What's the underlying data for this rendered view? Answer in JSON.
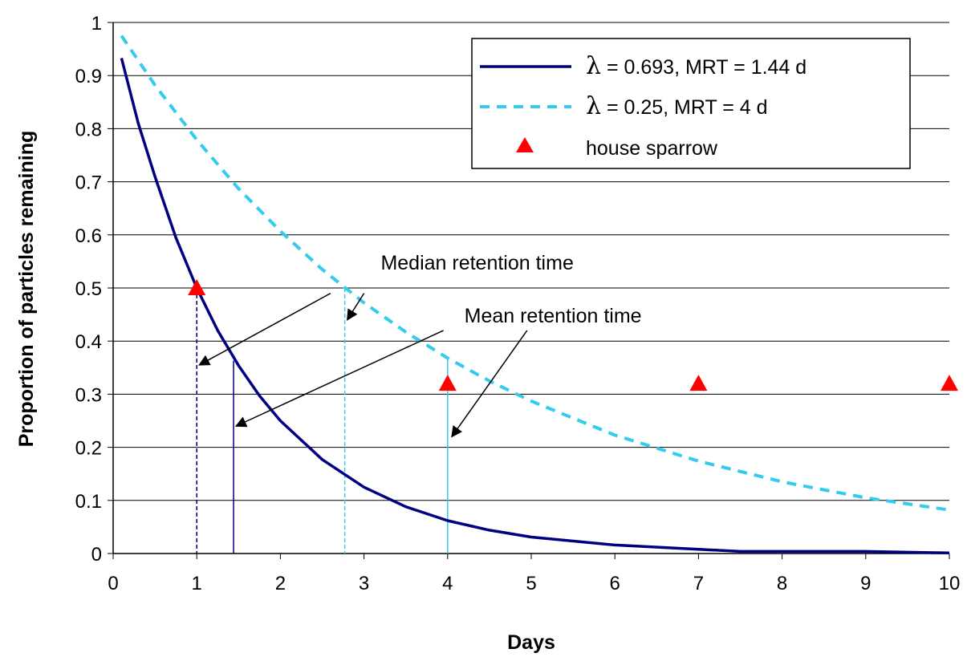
{
  "chart_data": {
    "type": "line",
    "title": "",
    "xlabel": "Days",
    "ylabel": "Proportion of particles remaining",
    "xlim": [
      0,
      10
    ],
    "ylim": [
      0,
      1
    ],
    "x_ticks": [
      "0",
      "1",
      "2",
      "3",
      "4",
      "5",
      "6",
      "7",
      "8",
      "9",
      "10"
    ],
    "y_ticks": [
      "0",
      "0.1",
      "0.2",
      "0.3",
      "0.4",
      "0.5",
      "0.6",
      "0.7",
      "0.8",
      "0.9",
      "1"
    ],
    "grid": "horizontal",
    "legend_position": "top-right",
    "series": [
      {
        "name_symbol": "λ",
        "name_rest": " = 0.693, MRT = 1.44 d",
        "style": "solid",
        "color": "#000080",
        "x": [
          0.1,
          0.3,
          0.5,
          0.75,
          1.0,
          1.25,
          1.5,
          1.75,
          2.0,
          2.5,
          3.0,
          3.5,
          4.0,
          4.5,
          5.0,
          6.0,
          7.0,
          7.5,
          8.0,
          9.0,
          10.0
        ],
        "y": [
          0.933,
          0.81,
          0.71,
          0.595,
          0.5,
          0.42,
          0.354,
          0.297,
          0.25,
          0.177,
          0.125,
          0.088,
          0.062,
          0.044,
          0.031,
          0.016,
          0.008,
          0.004,
          0.004,
          0.004,
          0.001
        ]
      },
      {
        "name_symbol": "λ",
        "name_rest": " = 0.25, MRT = 4 d",
        "style": "dashed",
        "color": "#33CCEE",
        "x": [
          0.1,
          0.5,
          1.0,
          1.5,
          2.0,
          2.5,
          3.0,
          3.5,
          4.0,
          4.5,
          5.0,
          6.0,
          7.0,
          8.0,
          8.5,
          9.0,
          10.0
        ],
        "y": [
          0.975,
          0.882,
          0.779,
          0.687,
          0.607,
          0.535,
          0.472,
          0.417,
          0.368,
          0.325,
          0.287,
          0.223,
          0.174,
          0.135,
          0.12,
          0.105,
          0.082
        ]
      },
      {
        "name": "house sparrow",
        "style": "marker-triangle",
        "color": "#FF0000",
        "x": [
          1,
          4,
          7,
          10
        ],
        "y": [
          0.5,
          0.32,
          0.32,
          0.32
        ]
      }
    ],
    "reference_lines": [
      {
        "x": 1.0,
        "y": 0.5,
        "style": "dashed",
        "color": "#000080"
      },
      {
        "x": 1.44,
        "y": 0.363,
        "style": "solid",
        "color": "#000080"
      },
      {
        "x": 2.77,
        "y": 0.5,
        "style": "dashed",
        "color": "#33CCEE"
      },
      {
        "x": 4.0,
        "y": 0.368,
        "style": "solid",
        "color": "#33CCEE"
      }
    ],
    "annotations": [
      {
        "text": "Median retention time",
        "text_x": 3.2,
        "text_y": 0.535,
        "arrows": [
          {
            "from": [
              2.6,
              0.49
            ],
            "to": [
              1.03,
              0.355
            ]
          },
          {
            "from": [
              3.0,
              0.49
            ],
            "to": [
              2.8,
              0.44
            ]
          }
        ]
      },
      {
        "text": "Mean retention time",
        "text_x": 4.2,
        "text_y": 0.435,
        "arrows": [
          {
            "from": [
              3.95,
              0.42
            ],
            "to": [
              1.47,
              0.24
            ]
          },
          {
            "from": [
              4.95,
              0.42
            ],
            "to": [
              4.05,
              0.22
            ]
          }
        ]
      }
    ]
  }
}
